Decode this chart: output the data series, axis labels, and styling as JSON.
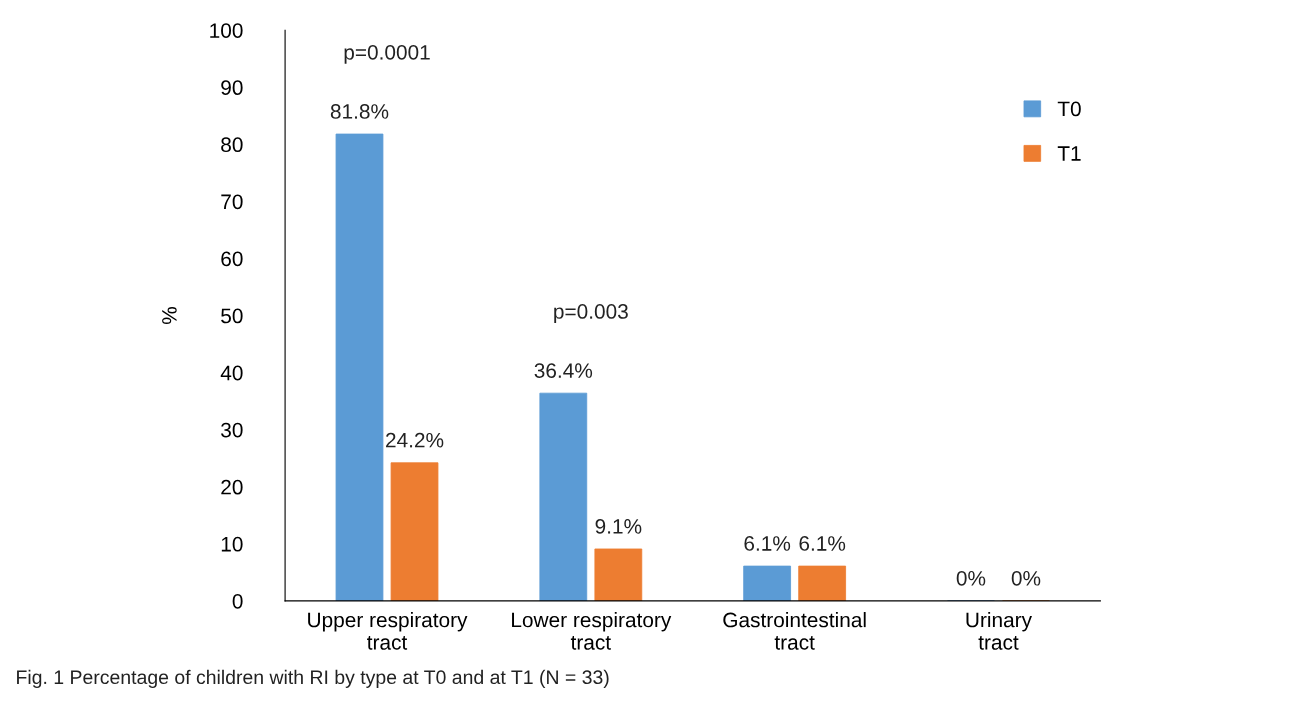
{
  "chart_data": {
    "type": "bar",
    "ylabel": "%",
    "categories": [
      "Upper respiratory\ntract",
      "Lower respiratory\ntract",
      "Gastrointestinal\ntract",
      "Urinary\ntract"
    ],
    "series": [
      {
        "name": "T0",
        "color": "#5b9bd5",
        "values": [
          81.8,
          36.4,
          6.1,
          0
        ],
        "value_labels": [
          "81.8%",
          "36.4%",
          "6.1%",
          "0%"
        ]
      },
      {
        "name": "T1",
        "color": "#ed7d31",
        "values": [
          24.2,
          9.1,
          6.1,
          0
        ],
        "value_labels": [
          "24.2%",
          "9.1%",
          "6.1%",
          "0%"
        ]
      }
    ],
    "ylim": [
      0,
      100
    ],
    "yticks": [
      0,
      10,
      20,
      30,
      40,
      50,
      60,
      70,
      80,
      90,
      100
    ],
    "grid": false,
    "legend": "right",
    "annotations": [
      "p=0.0001",
      "p=0.003",
      "Fig. 1 Percentage of children with RI by type at T0 and at T1 (N = 33)"
    ]
  }
}
